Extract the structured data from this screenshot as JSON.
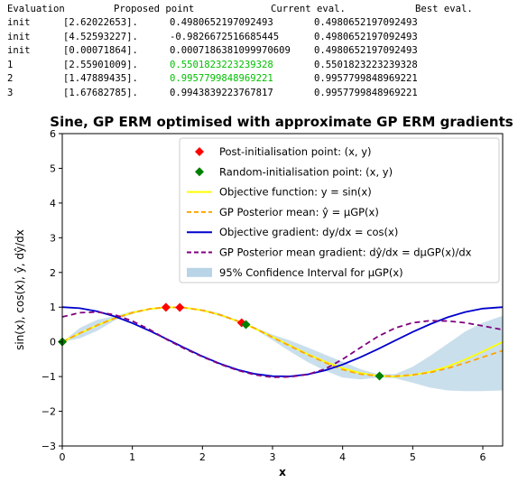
{
  "log": {
    "headers": [
      "Evaluation",
      "Proposed point",
      "Current eval.",
      "Best eval."
    ],
    "rows": [
      {
        "evaluation": "init",
        "proposed": "[2.62022653].",
        "current": "0.4980652197092493",
        "best": "0.4980652197092493",
        "highlight": false
      },
      {
        "evaluation": "init",
        "proposed": "[4.52593227].",
        "current": "-0.9826672516685445",
        "best": "0.4980652197092493",
        "highlight": false
      },
      {
        "evaluation": "init",
        "proposed": "[0.00071864].",
        "current": "0.0007186381099970609",
        "best": "0.4980652197092493",
        "highlight": false
      },
      {
        "evaluation": "1",
        "proposed": "[2.55901009].",
        "current": "0.5501823223239328",
        "best": "0.5501823223239328",
        "highlight": true
      },
      {
        "evaluation": "2",
        "proposed": "[1.47889435].",
        "current": "0.9957799848969221",
        "best": "0.9957799848969221",
        "highlight": true
      },
      {
        "evaluation": "3",
        "proposed": "[1.67682785].",
        "current": "0.9943839223767817",
        "best": "0.9957799848969221",
        "highlight": false
      }
    ],
    "highlight_color": "#00c000"
  },
  "chart_data": {
    "type": "line",
    "title": "Sine, GP ERM optimised with approximate GP ERM gradients",
    "xlabel": "x",
    "ylabel": "sin(x), cos(x), ŷ, dŷ/dx",
    "xlim": [
      0,
      6.2832
    ],
    "ylim": [
      -3,
      6
    ],
    "xticks": [
      0,
      1,
      2,
      3,
      4,
      5,
      6
    ],
    "yticks": [
      -3,
      -2,
      -1,
      0,
      1,
      2,
      3,
      4,
      5,
      6
    ],
    "legend_position": "top-right",
    "grid": false,
    "legend": [
      {
        "label": "Post-initialisation point: (x, y)",
        "kind": "marker",
        "color": "#ff0000"
      },
      {
        "label": "Random-initialisation point: (x, y)",
        "kind": "marker",
        "color": "#008000"
      },
      {
        "label": "Objective function: y = sin(x)",
        "kind": "line",
        "color": "#ffff00",
        "dash": "solid"
      },
      {
        "label": "GP Posterior mean: ŷ = μGP(x)",
        "kind": "line",
        "color": "#ffa500",
        "dash": "dashed"
      },
      {
        "label": "Objective gradient: dy/dx = cos(x)",
        "kind": "line",
        "color": "#0000cd",
        "dash": "solid"
      },
      {
        "label": "GP Posterior mean gradient: dŷ/dx = dμGP(x)/dx",
        "kind": "line",
        "color": "#800080",
        "dash": "dashed"
      },
      {
        "label": "95% Confidence Interval for μGP(x)",
        "kind": "patch",
        "color": "#b8d4e6"
      }
    ],
    "series": [
      {
        "name": "Objective function: y = sin(x)",
        "color": "#ffff00",
        "dash": "solid",
        "x": [
          0,
          0.25,
          0.5,
          0.75,
          1,
          1.25,
          1.5,
          1.75,
          2,
          2.25,
          2.5,
          2.75,
          3,
          3.25,
          3.5,
          3.75,
          4,
          4.25,
          4.5,
          4.75,
          5,
          5.25,
          5.5,
          5.75,
          6,
          6.2832
        ],
        "y": [
          0,
          0.247,
          0.479,
          0.682,
          0.841,
          0.949,
          0.997,
          0.984,
          0.909,
          0.778,
          0.598,
          0.382,
          0.141,
          -0.108,
          -0.351,
          -0.572,
          -0.757,
          -0.895,
          -0.978,
          -0.999,
          -0.959,
          -0.859,
          -0.706,
          -0.508,
          -0.279,
          0
        ]
      },
      {
        "name": "GP Posterior mean: ŷ = μGP(x)",
        "color": "#ffa500",
        "dash": "dashed",
        "x": [
          0,
          0.25,
          0.5,
          0.75,
          1,
          1.25,
          1.5,
          1.75,
          2,
          2.25,
          2.5,
          2.75,
          3,
          3.25,
          3.5,
          3.75,
          4,
          4.25,
          4.5,
          4.75,
          5,
          5.25,
          5.5,
          5.75,
          6,
          6.2832
        ],
        "y": [
          0,
          0.25,
          0.48,
          0.68,
          0.84,
          0.95,
          1.0,
          0.98,
          0.91,
          0.78,
          0.6,
          0.39,
          0.13,
          -0.12,
          -0.37,
          -0.6,
          -0.8,
          -0.93,
          -0.98,
          -0.99,
          -0.95,
          -0.88,
          -0.76,
          -0.61,
          -0.44,
          -0.25
        ]
      },
      {
        "name": "Objective gradient: dy/dx = cos(x)",
        "color": "#0000cd",
        "dash": "solid",
        "x": [
          0,
          0.25,
          0.5,
          0.75,
          1,
          1.25,
          1.5,
          1.75,
          2,
          2.25,
          2.5,
          2.75,
          3,
          3.25,
          3.5,
          3.75,
          4,
          4.25,
          4.5,
          4.75,
          5,
          5.25,
          5.5,
          5.75,
          6,
          6.2832
        ],
        "y": [
          1,
          0.969,
          0.878,
          0.732,
          0.54,
          0.315,
          0.071,
          -0.178,
          -0.416,
          -0.628,
          -0.801,
          -0.924,
          -0.99,
          -0.994,
          -0.936,
          -0.82,
          -0.654,
          -0.446,
          -0.211,
          0.037,
          0.284,
          0.512,
          0.709,
          0.861,
          0.96,
          1
        ]
      },
      {
        "name": "GP Posterior mean gradient: dŷ/dx = dμGP(x)/dx",
        "color": "#800080",
        "dash": "dashed",
        "x": [
          0,
          0.25,
          0.5,
          0.75,
          1,
          1.25,
          1.5,
          1.75,
          2,
          2.25,
          2.5,
          2.75,
          3,
          3.25,
          3.5,
          3.75,
          4,
          4.25,
          4.5,
          4.75,
          5,
          5.25,
          5.5,
          5.75,
          6,
          6.2832
        ],
        "y": [
          0.72,
          0.84,
          0.86,
          0.78,
          0.6,
          0.35,
          0.06,
          -0.2,
          -0.43,
          -0.64,
          -0.82,
          -0.95,
          -1.02,
          -1.01,
          -0.94,
          -0.78,
          -0.5,
          -0.17,
          0.15,
          0.4,
          0.55,
          0.61,
          0.6,
          0.55,
          0.46,
          0.35
        ]
      }
    ],
    "confidence_band": {
      "name": "95% Confidence Interval for μGP(x)",
      "color": "#b8d4e6",
      "x": [
        0,
        0.25,
        0.5,
        0.75,
        1,
        1.25,
        1.5,
        1.75,
        2,
        2.25,
        2.5,
        2.75,
        3,
        3.25,
        3.5,
        3.75,
        4,
        4.25,
        4.5,
        4.75,
        5,
        5.25,
        5.5,
        5.75,
        6,
        6.2832
      ],
      "lower": [
        0,
        0.1,
        0.32,
        0.62,
        0.8,
        0.93,
        1.0,
        0.97,
        0.88,
        0.74,
        0.57,
        0.36,
        0.05,
        -0.28,
        -0.58,
        -0.83,
        -1.03,
        -1.08,
        -1.03,
        -1.05,
        -1.18,
        -1.32,
        -1.4,
        -1.42,
        -1.42,
        -1.4
      ],
      "upper": [
        0,
        0.4,
        0.64,
        0.74,
        0.88,
        0.97,
        1.0,
        0.99,
        0.94,
        0.82,
        0.63,
        0.42,
        0.21,
        0.04,
        -0.16,
        -0.37,
        -0.57,
        -0.78,
        -0.93,
        -0.93,
        -0.72,
        -0.4,
        -0.05,
        0.3,
        0.55,
        0.75
      ]
    },
    "post_init_points": {
      "name": "Post-initialisation point: (x, y)",
      "color": "#ff0000",
      "x": [
        2.55901009,
        1.47889435,
        1.67682785
      ],
      "y": [
        0.5501823223239328,
        0.9957799848969221,
        0.9943839223767817
      ]
    },
    "random_init_points": {
      "name": "Random-initialisation point: (x, y)",
      "color": "#008000",
      "x": [
        2.62022653,
        4.52593227,
        0.00071864
      ],
      "y": [
        0.4980652197092493,
        -0.9826672516685445,
        0.0007186381099970609
      ]
    }
  }
}
